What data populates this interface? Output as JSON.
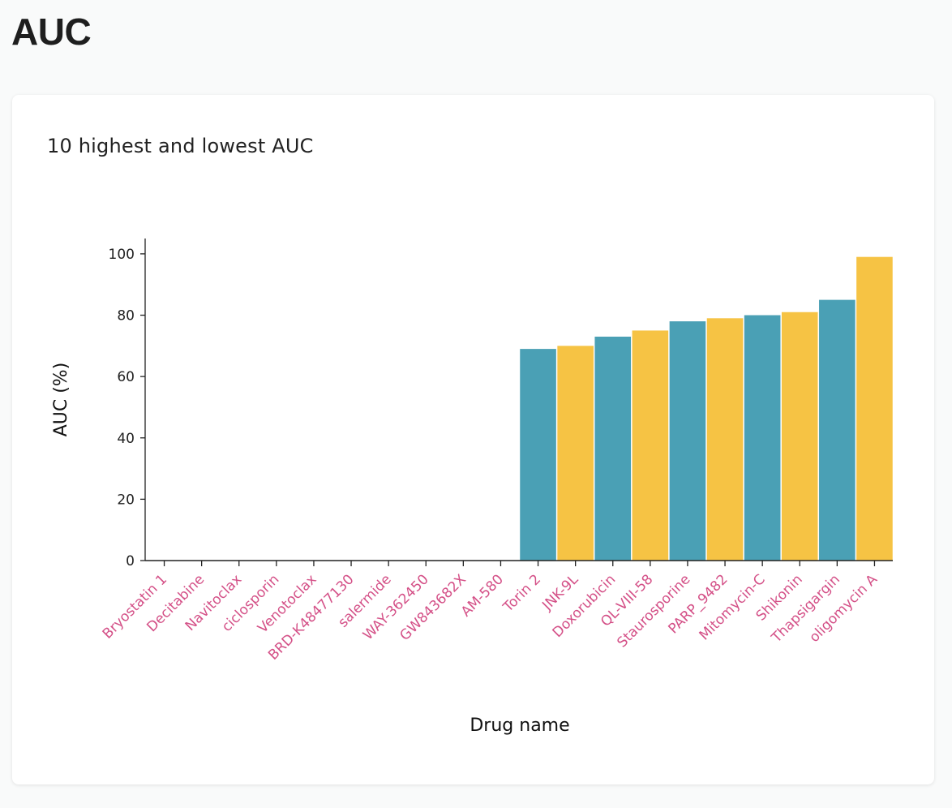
{
  "page": {
    "title": "AUC"
  },
  "card": {
    "title": "10 highest and lowest AUC"
  },
  "chart_data": {
    "type": "bar",
    "title": "10 highest and lowest AUC",
    "xlabel": "Drug name",
    "ylabel": "AUC (%)",
    "ylim": [
      0,
      105
    ],
    "yticks": [
      0,
      20,
      40,
      60,
      80,
      100
    ],
    "categories": [
      "Bryostatin 1",
      "Decitabine",
      "Navitoclax",
      "ciclosporin",
      "Venotoclax",
      "BRD-K48477130",
      "salermide",
      "WAY-362450",
      "GW843682X",
      "AM-580",
      "Torin 2",
      "JNK-9L",
      "Doxorubicin",
      "QL-VIII-58",
      "Staurosporine",
      "PARP_9482",
      "Mitomycin-C",
      "Shikonin",
      "Thapsigargin",
      "oligomycin A"
    ],
    "values": [
      0,
      0,
      0,
      0,
      0,
      0,
      0,
      0,
      0,
      0,
      69,
      70,
      73,
      75,
      78,
      79,
      80,
      81,
      85,
      99
    ],
    "grid": false,
    "colors": {
      "teal": "#4aa0b5",
      "yellow": "#f6c344",
      "tick_label": "#d45087"
    }
  }
}
